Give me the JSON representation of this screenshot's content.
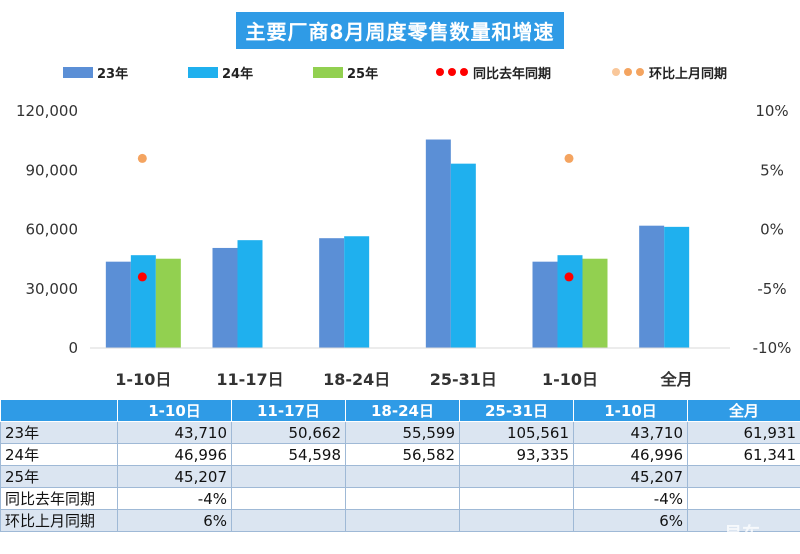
{
  "chart_data": {
    "type": "bar",
    "title": "主要厂商8月周度零售数量和增速",
    "categories": [
      "1-10日",
      "11-17日",
      "18-24日",
      "25-31日",
      "1-10日",
      "全月"
    ],
    "series": [
      {
        "name": "23年",
        "type": "bar",
        "color": "#5b8fd6",
        "values": [
          43710,
          50662,
          55599,
          105561,
          43710,
          61931
        ]
      },
      {
        "name": "24年",
        "type": "bar",
        "color": "#1fb0ee",
        "values": [
          46996,
          54598,
          56582,
          93335,
          46996,
          61341
        ]
      },
      {
        "name": "25年",
        "type": "bar",
        "color": "#92d050",
        "values": [
          45207,
          null,
          null,
          null,
          45207,
          null
        ]
      },
      {
        "name": "同比去年同期",
        "type": "scatter",
        "axis": "right",
        "color": "#ff0000",
        "values": [
          -0.04,
          null,
          null,
          null,
          -0.04,
          null
        ]
      },
      {
        "name": "环比上月同期",
        "type": "scatter",
        "axis": "right",
        "color": "#f4a460",
        "values": [
          0.06,
          null,
          null,
          null,
          0.06,
          null
        ]
      }
    ],
    "ylim": [
      0,
      120000
    ],
    "yticks": [
      "0",
      "30,000",
      "60,000",
      "90,000",
      "120,000"
    ],
    "y2lim": [
      -0.1,
      0.1
    ],
    "y2ticks": [
      "-10%",
      "-5%",
      "0%",
      "5%",
      "10%"
    ],
    "legend_position": "top",
    "grid": false
  },
  "table": {
    "headers": [
      "",
      "1-10日",
      "11-17日",
      "18-24日",
      "25-31日",
      "1-10日",
      "全月"
    ],
    "rows": [
      {
        "label": "23年",
        "cells": [
          "43,710",
          "50,662",
          "55,599",
          "105,561",
          "43,710",
          "61,931"
        ]
      },
      {
        "label": "24年",
        "cells": [
          "46,996",
          "54,598",
          "56,582",
          "93,335",
          "46,996",
          "61,341"
        ]
      },
      {
        "label": "25年",
        "cells": [
          "45,207",
          "",
          "",
          "",
          "45,207",
          ""
        ]
      },
      {
        "label": "同比去年同期",
        "cells": [
          "-4%",
          "",
          "",
          "",
          "-4%",
          ""
        ]
      },
      {
        "label": "环比上月同期",
        "cells": [
          "6%",
          "",
          "",
          "",
          "6%",
          ""
        ]
      }
    ]
  },
  "watermark": "易车"
}
